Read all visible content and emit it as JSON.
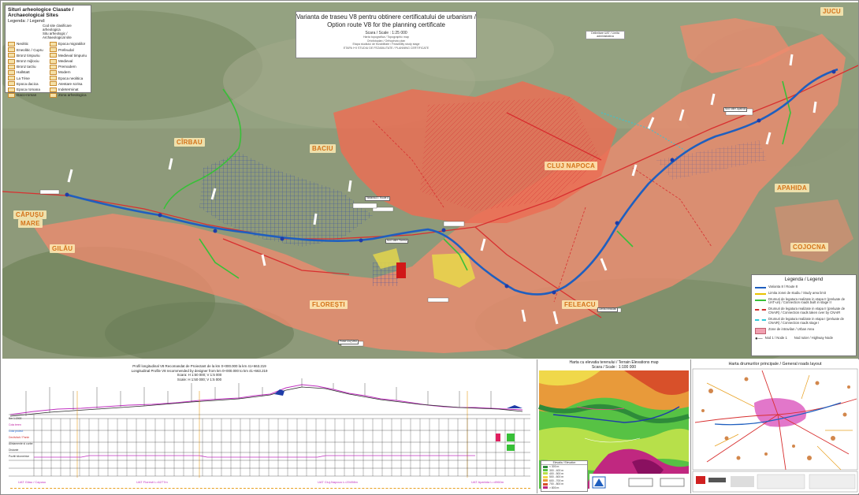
{
  "archaeology_legend": {
    "title": "Situri arheologice Clasate / Archaeological Sites",
    "subtitle": "Legenda: / Legend:",
    "top_items": [
      "Cod site clasificare arheologica",
      "Situ arheologic / Archaeological site"
    ],
    "items_left": [
      "Neolitic",
      "Eneolitic / Cupru",
      "Bronz timpuriu",
      "Bronz mijlociu",
      "Bronz tarziu",
      "Hallstatt",
      "La Tène",
      "Epoca dacica",
      "Epoca romana",
      "Daco-roman"
    ],
    "items_right": [
      "Epoca migratiilor",
      "Prefeudal",
      "Medieval timpuriu",
      "Medieval",
      "Premodern",
      "Modern",
      "Epoca neolitica",
      "Atestare scrisa",
      "Indeterminat",
      "Zona arheologica"
    ]
  },
  "title_box": {
    "line1": "Varianta de traseu V8 pentru obtinere certificatului de urbanism /",
    "line2": "Option route V8 for the planning certificate",
    "scale": "Scara / Scale : 1:25 000",
    "notes": [
      "Harta topografica / Topographic map",
      "Ortofotoplan / Orthophoto plan",
      "Etapa studiului de fezabilitate / Feasibility study stage",
      "ETAPA I+II STUDIU DE FEZABILITATE / PLANNING CERTIFICATE"
    ]
  },
  "towns": [
    {
      "id": "jucu",
      "label": "JUCU"
    },
    {
      "id": "cirbau",
      "label": "CÎRBAU"
    },
    {
      "id": "baciu",
      "label": "BACIU"
    },
    {
      "id": "cluj",
      "label": "CLUJ NAPOCA"
    },
    {
      "id": "apahida",
      "label": "APAHIDA"
    },
    {
      "id": "capusu1",
      "label": "CĂPUȘU"
    },
    {
      "id": "capusu2",
      "label": "MARE"
    },
    {
      "id": "gilau",
      "label": "GILĂU"
    },
    {
      "id": "floresti",
      "label": "FLOREȘTI"
    },
    {
      "id": "feleacu",
      "label": "FELEACU"
    },
    {
      "id": "cojocna",
      "label": "COJOCNA"
    }
  ],
  "map_legend": {
    "title": "Legenda / Legend",
    "items": [
      {
        "label": "Varianta 8 / Route 8",
        "color": "#1f5fbf",
        "kind": "line"
      },
      {
        "label": "Limita zonei de studiu / Study area limit",
        "color": "#e8c200",
        "kind": "line"
      },
      {
        "label": "Drumuri de legatura realizate in etapa II (preluate de UAT-uri) / Connection roads built in stage II",
        "color": "#38c038",
        "kind": "line"
      },
      {
        "label": "Drumuri de legatura realizate in etapa II (preluate de CNAIR) / Connection roads taken over by CNAIR",
        "color": "#d03030",
        "kind": "dash"
      },
      {
        "label": "Drumuri de legatura realizate in etapa I (preluate de CNAIR) / Connection roads stage I",
        "color": "#30c8d8",
        "kind": "dash"
      },
      {
        "label": "Zone de intravilan / Urban Area",
        "color": "#f0a0b0",
        "kind": "area"
      },
      {
        "label": "Nod 1 / Node 1",
        "color": "#333333",
        "kind": "node"
      },
      {
        "label": "Nod rutier / Highway Node",
        "color": "#333333",
        "kind": "node"
      }
    ]
  },
  "callouts": [
    "Varianta 8 / Route 8",
    "Nod rutier Floresti",
    "Punct Cluj Vest",
    "Nod rutier Apahida",
    "Limita intravilan"
  ],
  "elev_small_box": "Delimitare UAT / Limita administrativa",
  "profile": {
    "line1": "Profil longitudinal V8 Recomandat de Proiectant de la km 0+000.000 la km 41+663.219",
    "line2": "Longitudinal Profile V8 recommended by designer from km 0+000.000 to km 41+663.219",
    "line3": "Scara: H 1:50 000; V 1:5 000",
    "line4": "Scale: H 1:50 000; V 1:5 000",
    "row_labels": [
      "Km 1:2000",
      "Cota teren",
      "Cota proiect",
      "Declivitati / Pante",
      "Aliniamente si curbe",
      "Distante",
      "Pozitii kilometrice"
    ],
    "bottom_labels": [
      "UAT Gilau / Capusu",
      "UAT Floresti L=6277m",
      "UAT Cluj-Napoca L=20498m",
      "UAT Apahida L=4960m"
    ]
  },
  "elevation_map": {
    "title1": "Harta cu elevatia terenului / Terrain Elevations map",
    "title2": "Scara / Scale : 1:100 000",
    "legend_title": "Elevatia / Elevation",
    "legend": [
      {
        "label": "< 300 m",
        "color": "#2e8b3a"
      },
      {
        "label": "300 - 400 m",
        "color": "#57c244"
      },
      {
        "label": "400 - 500 m",
        "color": "#b7e04a"
      },
      {
        "label": "500 - 600 m",
        "color": "#f0d84a"
      },
      {
        "label": "600 - 700 m",
        "color": "#e89a3a"
      },
      {
        "label": "700 - 800 m",
        "color": "#d8502a"
      },
      {
        "label": "> 800 m",
        "color": "#c02880"
      }
    ]
  },
  "roads_map": {
    "title": "Harta drumurilor principale / General roads layout"
  },
  "colors": {
    "route": "#1f5fbf",
    "urban": "#ef8a6e",
    "town_label": "#d4731a",
    "green_road": "#38c038",
    "red_road": "#d83030"
  }
}
